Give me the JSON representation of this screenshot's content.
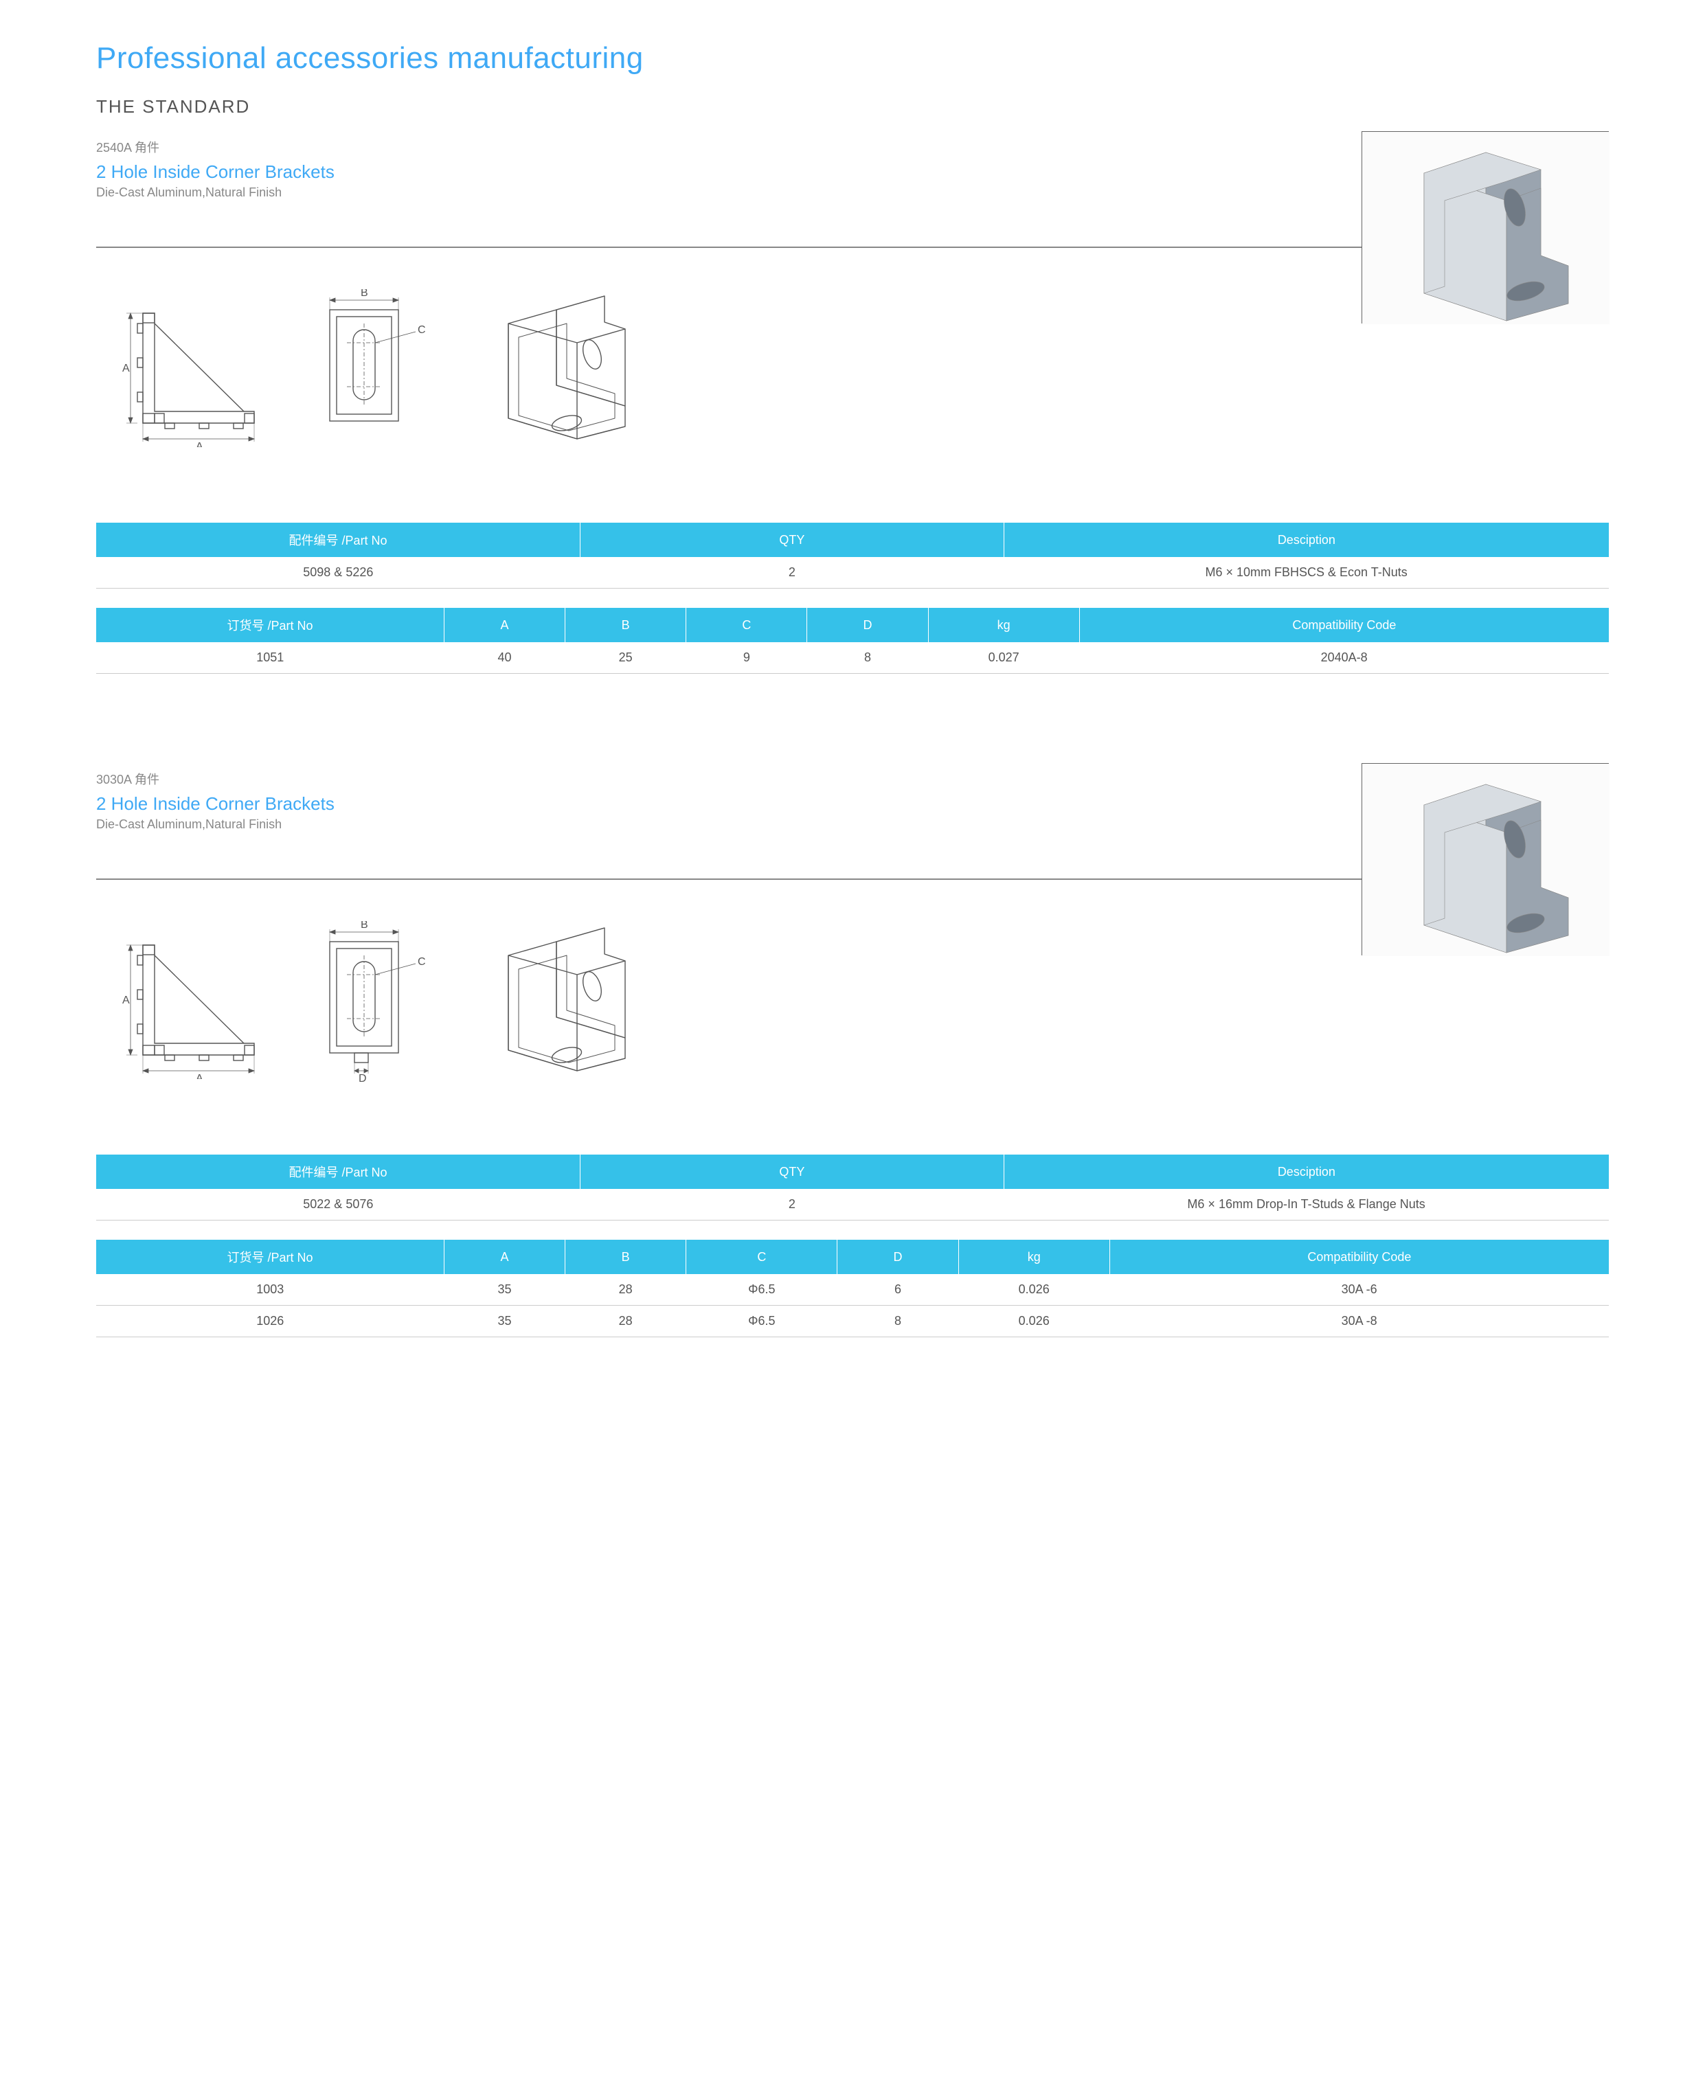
{
  "page": {
    "main_title": "Professional accessories manufacturing",
    "standard": "THE STANDARD"
  },
  "sections": [
    {
      "code": "2540A 角件",
      "title": "2 Hole Inside Corner Brackets",
      "sub": "Die-Cast Aluminum,Natural Finish",
      "has_d_notch": false,
      "parts_table": {
        "headers": [
          "配件编号 /Part No",
          "QTY",
          "Desciption"
        ],
        "rows": [
          [
            "5098 & 5226",
            "2",
            "M6 × 10mm FBHSCS & Econ T-Nuts"
          ]
        ]
      },
      "spec_table": {
        "headers": [
          "订货号 /Part No",
          "A",
          "B",
          "C",
          "D",
          "kg",
          "Compatibility Code"
        ],
        "col_widths": [
          "23%",
          "8%",
          "8%",
          "8%",
          "8%",
          "10%",
          "35%"
        ],
        "rows": [
          [
            "1051",
            "40",
            "25",
            "9",
            "8",
            "0.027",
            "2040A-8"
          ]
        ]
      }
    },
    {
      "code": "3030A 角件",
      "title": "2 Hole Inside Corner Brackets",
      "sub": "Die-Cast Aluminum,Natural Finish",
      "has_d_notch": true,
      "parts_table": {
        "headers": [
          "配件编号 /Part No",
          "QTY",
          "Desciption"
        ],
        "rows": [
          [
            "5022 & 5076",
            "2",
            "M6 × 16mm Drop-In T-Studs & Flange Nuts"
          ]
        ]
      },
      "spec_table": {
        "headers": [
          "订货号 /Part No",
          "A",
          "B",
          "C",
          "D",
          "kg",
          "Compatibility Code"
        ],
        "col_widths": [
          "23%",
          "8%",
          "8%",
          "10%",
          "8%",
          "10%",
          "33%"
        ],
        "rows": [
          [
            "1003",
            "35",
            "28",
            "Φ6.5",
            "6",
            "0.026",
            "30A -6"
          ],
          [
            "1026",
            "35",
            "28",
            "Φ6.5",
            "8",
            "0.026",
            "30A -8"
          ]
        ]
      }
    }
  ],
  "style": {
    "accent": "#3fa9f5",
    "table_header_bg": "#35c1e9",
    "line": "#555555",
    "photo_metal_light": "#d8dde2",
    "photo_metal_dark": "#9aa4af"
  }
}
